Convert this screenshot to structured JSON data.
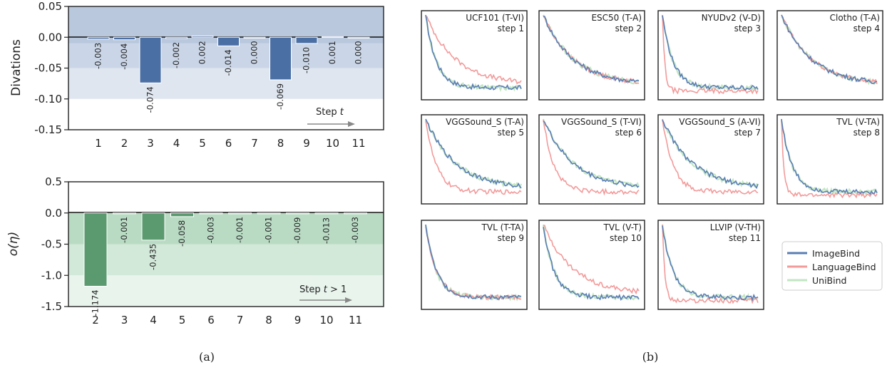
{
  "colors": {
    "imagebind": "#5a7db4",
    "languagebind": "#f39a9a",
    "unibind": "#c2e6c2",
    "bar_top": "#4a6fa5",
    "bar_bottom": "#5a9a6e",
    "bands_top": [
      "#b9c8dd",
      "#cad6e7",
      "#dfe6f0"
    ],
    "bands_bottom": [
      "#b9dbc4",
      "#d2e8d9",
      "#e9f4ed"
    ]
  },
  "panel_labels": {
    "a": "(a)",
    "b": "(b)"
  },
  "chart_data": [
    {
      "type": "bar",
      "id": "top-deviations",
      "title": "",
      "xlabel": "",
      "ylabel": "Divations",
      "annotation": "Step t",
      "annotation_main": "Step ",
      "annotation_var": "t",
      "categories": [
        "1",
        "2",
        "3",
        "4",
        "5",
        "6",
        "7",
        "8",
        "9",
        "10",
        "11"
      ],
      "values": [
        -0.003,
        -0.004,
        -0.074,
        -0.002,
        0.002,
        -0.014,
        0.0,
        -0.069,
        -0.01,
        0.001,
        0.0
      ],
      "labels": [
        "-0.003",
        "-0.004",
        "-0.074",
        "-0.002",
        "0.002",
        "-0.014",
        "0.000",
        "-0.069",
        "-0.010",
        "0.001",
        "0.000"
      ],
      "ylim": [
        -0.15,
        0.05
      ],
      "yticks": [
        "0.05",
        "0.00",
        "-0.05",
        "-0.10",
        "-0.15"
      ],
      "ytick_values": [
        0.05,
        0.0,
        -0.05,
        -0.1,
        -0.15
      ],
      "bands": [
        [
          0.05,
          -0.01
        ],
        [
          -0.01,
          -0.05
        ],
        [
          -0.05,
          -0.1
        ]
      ]
    },
    {
      "type": "bar",
      "id": "bottom-o-eta",
      "title": "",
      "xlabel": "",
      "ylabel": "o(η)",
      "annotation": "Step t > 1",
      "annotation_main": "Step ",
      "annotation_var": "t",
      "annotation_tail": " > 1",
      "categories": [
        "2",
        "3",
        "4",
        "5",
        "6",
        "7",
        "8",
        "9",
        "10",
        "11"
      ],
      "values": [
        -1.174,
        -0.001,
        -0.435,
        -0.058,
        -0.003,
        -0.001,
        -0.001,
        -0.009,
        -0.013,
        -0.003
      ],
      "labels": [
        "-1.174",
        "-0.001",
        "-0.435",
        "-0.058",
        "-0.003",
        "-0.001",
        "-0.001",
        "-0.009",
        "-0.013",
        "-0.003"
      ],
      "ylim": [
        -1.5,
        0.5
      ],
      "yticks": [
        "0.5",
        "0.0",
        "-0.5",
        "-1.0",
        "-1.5"
      ],
      "ytick_values": [
        0.5,
        0.0,
        -0.5,
        -1.0,
        -1.5
      ],
      "bands": [
        [
          0.0,
          -0.5
        ],
        [
          -0.5,
          -1.0
        ],
        [
          -1.0,
          -1.5
        ]
      ]
    },
    {
      "type": "line",
      "id": "loss-curves",
      "legend": [
        "ImageBind",
        "LanguageBind",
        "UniBind"
      ],
      "legend_placement": "bottom-right",
      "subplots": [
        {
          "title": "UCF101 (T-VI)",
          "step": "step 1"
        },
        {
          "title": "ESC50 (T-A)",
          "step": "step 2"
        },
        {
          "title": "NYUDv2 (V-D)",
          "step": "step 3"
        },
        {
          "title": "Clotho (T-A)",
          "step": "step 4"
        },
        {
          "title": "VGGSound_S (T-A)",
          "step": "step 5"
        },
        {
          "title": "VGGSound_S (T-VI)",
          "step": "step 6"
        },
        {
          "title": "VGGSound_S (A-VI)",
          "step": "step 7"
        },
        {
          "title": "TVL (V-TA)",
          "step": "step 8"
        },
        {
          "title": "TVL (T-TA)",
          "step": "step 9"
        },
        {
          "title": "TVL (V-T)",
          "step": "step 10"
        },
        {
          "title": "LLVIP (V-TH)",
          "step": "step 11"
        }
      ]
    }
  ]
}
